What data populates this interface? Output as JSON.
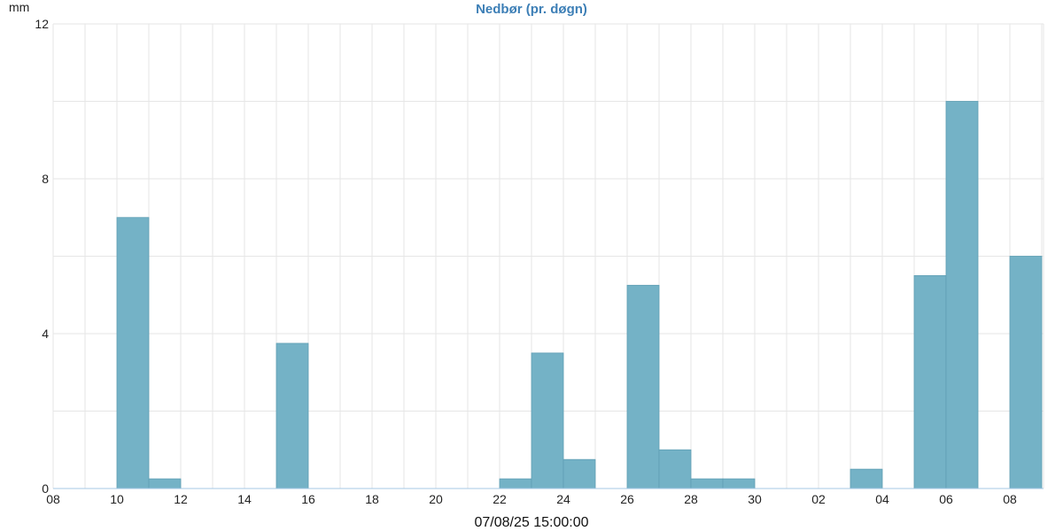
{
  "chart_data": {
    "type": "bar",
    "title": "Nedbør (pr. døgn)",
    "ylabel": "mm",
    "xlabel": "07/08/25 15:00:00",
    "ylim": [
      0,
      12
    ],
    "y_ticks": [
      "0",
      "4",
      "8",
      "12"
    ],
    "x_ticks": [
      "08",
      "10",
      "12",
      "14",
      "16",
      "18",
      "20",
      "22",
      "24",
      "26",
      "28",
      "30",
      "02",
      "04",
      "06",
      "08"
    ],
    "categories": [
      "08",
      "09",
      "10",
      "11",
      "12",
      "13",
      "14",
      "15",
      "16",
      "17",
      "18",
      "19",
      "20",
      "21",
      "22",
      "23",
      "24",
      "25",
      "26",
      "27",
      "28",
      "29",
      "30",
      "31",
      "01",
      "02",
      "03",
      "04",
      "05",
      "06",
      "07"
    ],
    "values": [
      0,
      0,
      7,
      0.25,
      0,
      0,
      0,
      3.75,
      0,
      0,
      0,
      0,
      0,
      0,
      0.25,
      3.5,
      0.75,
      0,
      5.25,
      1,
      0.25,
      0.25,
      0,
      0,
      0,
      0.5,
      0,
      5.5,
      10,
      0,
      6
    ],
    "grid": true,
    "legend": "none",
    "colors": {
      "bar": "#74b2c6",
      "bar_edge": "#5f9fb4",
      "title": "#3d7fb6",
      "grid": "#e6e6e6",
      "axis": "#a6c8e6"
    }
  }
}
